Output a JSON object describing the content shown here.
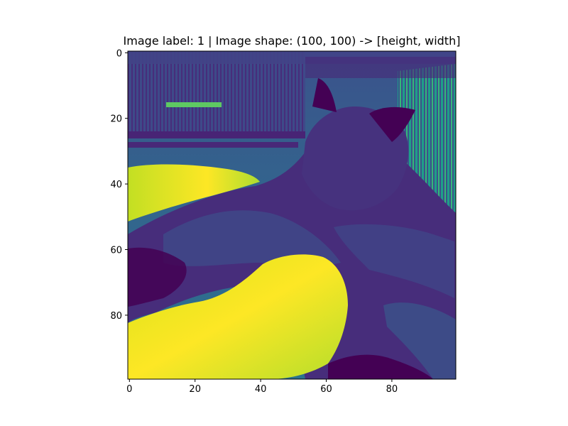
{
  "chart_data": {
    "type": "heatmap",
    "title": "Image label: 1 | Image shape: (100, 100) -> [height, width]",
    "xlabel": "",
    "ylabel": "",
    "colormap": "viridis",
    "image_shape": [
      100,
      100
    ],
    "xlim": [
      -0.5,
      99.5
    ],
    "ylim": [
      99.5,
      -0.5
    ],
    "x_ticks": [
      0,
      20,
      40,
      60,
      80
    ],
    "y_ticks": [
      0,
      20,
      40,
      60,
      80
    ],
    "grid": false,
    "content": "grayscale photo of a German Shepherd dog lying on a bright rug",
    "regions": [
      {
        "name": "background",
        "value": 0.32
      },
      {
        "name": "window-blinds",
        "value": 0.25
      },
      {
        "name": "bright-stripe",
        "value": 0.72
      },
      {
        "name": "rug-left",
        "value": 0.92
      },
      {
        "name": "rug-front",
        "value": 0.95
      },
      {
        "name": "dog-body",
        "value": 0.18
      },
      {
        "name": "dog-head",
        "value": 0.15
      },
      {
        "name": "dog-ear",
        "value": 0.12
      },
      {
        "name": "right-stripes",
        "value": 0.55
      }
    ]
  },
  "colors": {
    "viridis_dark": "#440154",
    "viridis_blue": "#3b528b",
    "viridis_teal": "#21918c",
    "viridis_green": "#5ec962",
    "viridis_yellow": "#fde725"
  }
}
